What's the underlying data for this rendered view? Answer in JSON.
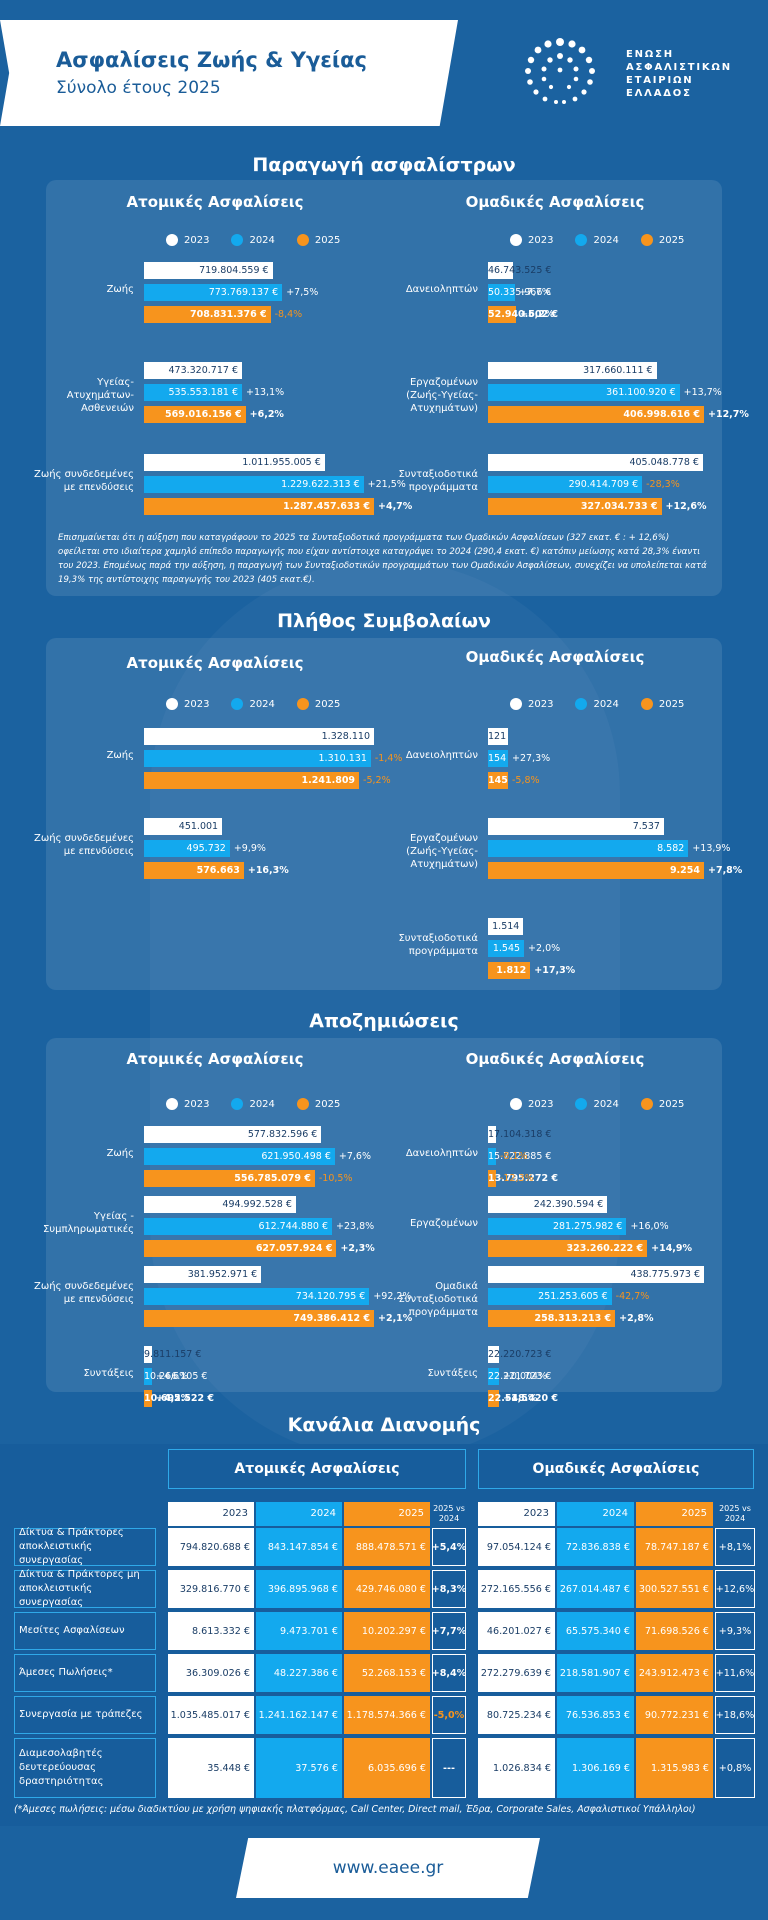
{
  "header": {
    "title": "Ασφαλίσεις Ζωής & Υγείας",
    "subtitle": "Σύνολο έτους 2025"
  },
  "logo": {
    "lines": [
      "ΕΝΩΣΗ",
      "ΑΣΦΑΛΙΣΤΙΚΩΝ",
      "ΕΤΑΙΡΙΩΝ",
      "ΕΛΛΑΔΟΣ"
    ]
  },
  "colors": {
    "y2023": "#ffffff",
    "y2024": "#13a9ee",
    "y2025": "#f7941d",
    "background": "#1b62a0"
  },
  "legend": {
    "y2023": "2023",
    "y2024": "2024",
    "y2025": "2025"
  },
  "labels": {
    "individual": "Ατομικές Ασφαλίσεις",
    "group": "Ομαδικές Ασφαλίσεις"
  },
  "sections": {
    "premiums": "Παραγωγή ασφαλίστρων",
    "contracts": "Πλήθος Συμβολαίων",
    "claims": "Αποζημιώσεις",
    "distribution": "Κανάλια Διανομής"
  },
  "note": "Επισημαίνεται ότι η αύξηση που καταγράφουν το 2025 τα Συνταξιοδοτικά προγράμματα των Ομαδικών Ασφαλίσεων (327 εκατ. € : + 12,6%) οφείλεται στο ιδιαίτερα χαμηλό επίπεδο παραγωγής που είχαν αντίστοιχα καταγράψει το 2024 (290,4 εκατ. €) κατόπιν μείωσης κατά 28,3% έναντι του 2023. Επομένως παρά την αύξηση, η παραγωγή των Συνταξιοδοτικών προγραμμάτων των Ομαδικών Ασφαλίσεων, συνεχίζει να υπολείπεται κατά 19,3% της αντίστοιχης παραγωγής του 2023 (405 εκατ.€).",
  "chart_data": [
    {
      "type": "bar",
      "title": "Παραγωγή ασφαλίστρων — Ατομικές Ασφαλίσεις",
      "orientation": "horizontal",
      "categories": [
        "Ζωής",
        "Υγείας-Ατυχημάτων-Ασθενειών",
        "Ζωής συνδεδεμένες με επενδύσεις"
      ],
      "series": [
        {
          "name": "2023",
          "values": [
            719804559,
            473320717,
            1011955005
          ],
          "labels": [
            "719.804.559 €",
            "473.320.717 €",
            "1.011.955.005 €"
          ]
        },
        {
          "name": "2024",
          "values": [
            773769137,
            535553181,
            1229622313
          ],
          "labels": [
            "773.769.137 €",
            "535.553.181 €",
            "1.229.622.313 €"
          ],
          "changes": [
            "+7,5%",
            "+13,1%",
            "+21,5%"
          ]
        },
        {
          "name": "2025",
          "values": [
            708831376,
            569016156,
            1287457633
          ],
          "labels": [
            "708.831.376 €",
            "569.016.156 €",
            "1.287.457.633 €"
          ],
          "changes": [
            "-8,4%",
            "+6,2%",
            "+4,7%"
          ]
        }
      ]
    },
    {
      "type": "bar",
      "title": "Παραγωγή ασφαλίστρων — Ομαδικές Ασφαλίσεις",
      "orientation": "horizontal",
      "categories": [
        "Δανειοληπτών",
        "Εργαζομένων (Ζωής-Υγείας-Ατυχημάτων)",
        "Συνταξιοδοτικά προγράμματα"
      ],
      "series": [
        {
          "name": "2023",
          "values": [
            46743525,
            317660111,
            405048778
          ],
          "labels": [
            "46.743.525 €",
            "317.660.111 €",
            "405.048.778 €"
          ]
        },
        {
          "name": "2024",
          "values": [
            50335966,
            361100920,
            290414709
          ],
          "labels": [
            "50.335.966 €",
            "361.100.920 €",
            "290.414.709 €"
          ],
          "changes": [
            "+7,7%",
            "+13,7%",
            "-28,3%"
          ]
        },
        {
          "name": "2025",
          "values": [
            52940602,
            406998616,
            327034733
          ],
          "labels": [
            "52.940.602 €",
            "406.998.616 €",
            "327.034.733 €"
          ],
          "changes": [
            "+5,2%",
            "+12,7%",
            "+12,6%"
          ]
        }
      ]
    },
    {
      "type": "bar",
      "title": "Πλήθος Συμβολαίων — Ατομικές Ασφαλίσεις",
      "orientation": "horizontal",
      "categories": [
        "Ζωής",
        "Ζωής συνδεδεμένες με επενδύσεις"
      ],
      "series": [
        {
          "name": "2023",
          "values": [
            1328110,
            451001
          ],
          "labels": [
            "1.328.110",
            "451.001"
          ]
        },
        {
          "name": "2024",
          "values": [
            1310131,
            495732
          ],
          "labels": [
            "1.310.131",
            "495.732"
          ],
          "changes": [
            "-1,4%",
            "+9,9%"
          ]
        },
        {
          "name": "2025",
          "values": [
            1241809,
            576663
          ],
          "labels": [
            "1.241.809",
            "576.663"
          ],
          "changes": [
            "-5,2%",
            "+16,3%"
          ]
        }
      ]
    },
    {
      "type": "bar",
      "title": "Πλήθος Συμβολαίων — Ομαδικές Ασφαλίσεις",
      "orientation": "horizontal",
      "categories": [
        "Δανειοληπτών",
        "Εργαζομένων (Ζωής-Υγείας-Ατυχημάτων)",
        "Συνταξιοδοτικά προγράμματα"
      ],
      "series": [
        {
          "name": "2023",
          "values": [
            121,
            7537,
            1514
          ],
          "labels": [
            "121",
            "7.537",
            "1.514"
          ]
        },
        {
          "name": "2024",
          "values": [
            154,
            8582,
            1545
          ],
          "labels": [
            "154",
            "8.582",
            "1.545"
          ],
          "changes": [
            "+27,3%",
            "+13,9%",
            "+2,0%"
          ]
        },
        {
          "name": "2025",
          "values": [
            145,
            9254,
            1812
          ],
          "labels": [
            "145",
            "9.254",
            "1.812"
          ],
          "changes": [
            "-5,8%",
            "+7,8%",
            "+17,3%"
          ]
        }
      ]
    },
    {
      "type": "bar",
      "title": "Αποζημιώσεις — Ατομικές Ασφαλίσεις",
      "orientation": "horizontal",
      "categories": [
        "Ζωής",
        "Υγείας - Συμπληρωματικές",
        "Ζωής συνδεδεμένες με επενδύσεις",
        "Συντάξεις"
      ],
      "series": [
        {
          "name": "2023",
          "values": [
            577832596,
            494992528,
            381952971,
            9811157
          ],
          "labels": [
            "577.832.596 €",
            "494.992.528 €",
            "381.952.971 €",
            "9.811.157 €"
          ]
        },
        {
          "name": "2024",
          "values": [
            621950498,
            612744880,
            734120795,
            10266105
          ],
          "labels": [
            "621.950.498 €",
            "612.744.880 €",
            "734.120.795 €",
            "10.266.105 €"
          ],
          "changes": [
            "+7,6%",
            "+23,8%",
            "+92,2%",
            "+4,6%"
          ]
        },
        {
          "name": "2025",
          "values": [
            556785079,
            627057924,
            749386412,
            10695522
          ],
          "labels": [
            "556.785.079 €",
            "627.057.924 €",
            "749.386.412 €",
            "10.695.522 €"
          ],
          "changes": [
            "-10,5%",
            "+2,3%",
            "+2,1%",
            "+4,2%"
          ]
        }
      ]
    },
    {
      "type": "bar",
      "title": "Αποζημιώσεις — Ομαδικές Ασφαλίσεις",
      "orientation": "horizontal",
      "categories": [
        "Δανειοληπτών",
        "Εργαζομένων",
        "Ομαδικά Συνταξιοδοτικά προγράμματα",
        "Συντάξεις"
      ],
      "series": [
        {
          "name": "2023",
          "values": [
            17104318,
            242390594,
            438775973,
            22220723
          ],
          "labels": [
            "17.104.318 €",
            "242.390.594 €",
            "438.775.973 €",
            "22.220.723 €"
          ]
        },
        {
          "name": "2024",
          "values": [
            15722885,
            281275982,
            251253605,
            22221723
          ],
          "labels": [
            "15.722.885 €",
            "281.275.982 €",
            "251.253.605 €",
            "22.221.723 €"
          ],
          "changes": [
            "-8,1%",
            "+16,0%",
            "-42,7%",
            "+0,004%"
          ]
        },
        {
          "name": "2025",
          "values": [
            13795272,
            323260222,
            258313213,
            22548420
          ],
          "labels": [
            "13.795.272 €",
            "323.260.222 €",
            "258.313.213 €",
            "22.548.420 €"
          ],
          "changes": [
            "-12,3%",
            "+14,9%",
            "+2,8%",
            "+1,5%"
          ]
        }
      ]
    },
    {
      "type": "table",
      "title": "Κανάλια Διανομής",
      "rows": [
        "Δίκτυα & Πράκτορες αποκλειστικής συνεργασίας",
        "Δίκτυα & Πράκτορες μη αποκλειστικής συνεργασίας",
        "Μεσίτες Ασφαλίσεων",
        "Άμεσες Πωλήσεις*",
        "Συνεργασία με τράπεζες",
        "Διαμεσολαβητές δευτερεύουσας δραστηριότητας"
      ],
      "columns": [
        "2023",
        "2024",
        "2025",
        "2025 vs 2024"
      ],
      "individual": [
        [
          "794.820.688 €",
          "843.147.854 €",
          "888.478.571 €",
          "+5,4%"
        ],
        [
          "329.816.770 €",
          "396.895.968 €",
          "429.746.080 €",
          "+8,3%"
        ],
        [
          "8.613.332 €",
          "9.473.701 €",
          "10.202.297 €",
          "+7,7%"
        ],
        [
          "36.309.026 €",
          "48.227.386 €",
          "52.268.153 €",
          "+8,4%"
        ],
        [
          "1.035.485.017 €",
          "1.241.162.147 €",
          "1.178.574.366 €",
          "-5,0%"
        ],
        [
          "35.448 €",
          "37.576 €",
          "6.035.696 €",
          "---"
        ]
      ],
      "group": [
        [
          "97.054.124 €",
          "72.836.838 €",
          "78.747.187 €",
          "+8,1%"
        ],
        [
          "272.165.556 €",
          "267.014.487 €",
          "300.527.551 €",
          "+12,6%"
        ],
        [
          "46.201.027 €",
          "65.575.340 €",
          "71.698.526 €",
          "+9,3%"
        ],
        [
          "272.279.639 €",
          "218.581.907 €",
          "243.912.473 €",
          "+11,6%"
        ],
        [
          "80.725.234 €",
          "76.536.853 €",
          "90.772.231 €",
          "+18,6%"
        ],
        [
          "1.026.834 €",
          "1.306.169 €",
          "1.315.983 €",
          "+0,8%"
        ]
      ]
    }
  ],
  "footnote": "(*Άμεσες πωλήσεις: μέσω διαδικτύου με χρήση ψηφιακής πλατφόρμας, Call Center, Direct mail, Έδρα, Corporate Sales, Ασφαλιστικοί Υπάλληλοι)",
  "footer": {
    "url": "www.eaee.gr"
  }
}
